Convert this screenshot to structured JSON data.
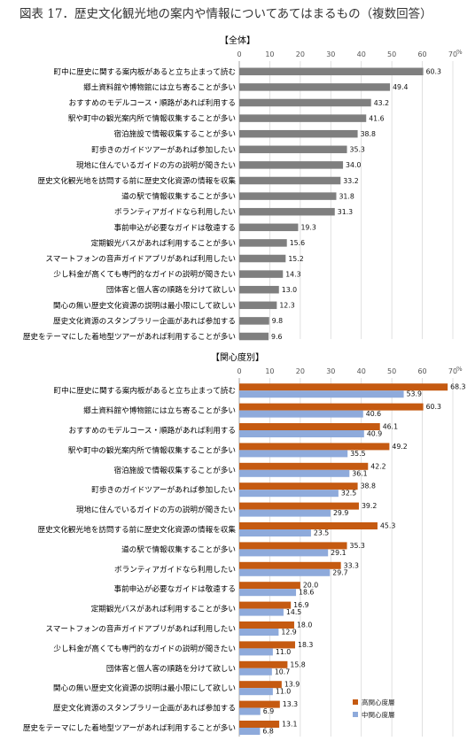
{
  "figure": {
    "title": "図表 17．歴史文化観光地の案内や情報についてあてはまるもの（複数回答）"
  },
  "chart_data": [
    {
      "type": "bar",
      "orientation": "horizontal",
      "title": "【全体】",
      "unit": "%",
      "xlim": [
        0,
        70
      ],
      "xticks": [
        0,
        10,
        20,
        30,
        40,
        50,
        60,
        70
      ],
      "grid": true,
      "categories": [
        "町中に歴史に関する案内板があると立ち止まって読む",
        "郷土資料館や博物館には立ち寄ることが多い",
        "おすすめのモデルコース・順路があれば利用する",
        "駅や町中の観光案内所で情報収集することが多い",
        "宿泊施設で情報収集することが多い",
        "町歩きのガイドツアーがあれば参加したい",
        "現地に住んでいるガイドの方の説明が聞きたい",
        "歴史文化観光地を訪問する前に歴史文化資源の情報を収集",
        "道の駅で情報収集することが多い",
        "ボランティアガイドなら利用したい",
        "事前申込が必要なガイドは敬遠する",
        "定期観光バスがあれば利用することが多い",
        "スマートフォンの音声ガイドアプリがあれば利用したい",
        "少し料金が高くても専門的なガイドの説明が聞きたい",
        "団体客と個人客の順路を分けて欲しい",
        "関心の無い歴史文化資源の説明は最小限にして欲しい",
        "歴史文化資源のスタンプラリー企画があれば参加する",
        "歴史をテーマにした着地型ツアーがあれば利用することが多い"
      ],
      "series": [
        {
          "color": "#7f7f7f",
          "values": [
            60.3,
            49.4,
            43.2,
            41.6,
            38.8,
            35.3,
            34.0,
            33.2,
            31.8,
            31.3,
            19.3,
            15.6,
            15.2,
            14.3,
            13.0,
            12.3,
            9.8,
            9.6
          ],
          "labels": [
            "60.3",
            "49.4",
            "43.2",
            "41.6",
            "38.8",
            "35.3",
            "34.0",
            "33.2",
            "31.8",
            "31.3",
            "19.3",
            "15.6",
            "15.2",
            "14.3",
            "13.0",
            "12.3",
            "9.8",
            "9.6"
          ]
        }
      ]
    },
    {
      "type": "bar",
      "orientation": "horizontal",
      "title": "【関心度別】",
      "unit": "%",
      "xlim": [
        0,
        70
      ],
      "xticks": [
        0,
        10,
        20,
        30,
        40,
        50,
        60,
        70
      ],
      "grid": true,
      "legend_position": "bottom-right",
      "categories": [
        "町中に歴史に関する案内板があると立ち止まって読む",
        "郷土資料館や博物館には立ち寄ることが多い",
        "おすすめのモデルコース・順路があれば利用する",
        "駅や町中の観光案内所で情報収集することが多い",
        "宿泊施設で情報収集することが多い",
        "町歩きのガイドツアーがあれば参加したい",
        "現地に住んでいるガイドの方の説明が聞きたい",
        "歴史文化観光地を訪問する前に歴史文化資源の情報を収集",
        "道の駅で情報収集することが多い",
        "ボランティアガイドなら利用したい",
        "事前申込が必要なガイドは敬遠する",
        "定期観光バスがあれば利用することが多い",
        "スマートフォンの音声ガイドアプリがあれば利用したい",
        "少し料金が高くても専門的なガイドの説明が聞きたい",
        "団体客と個人客の順路を分けて欲しい",
        "関心の無い歴史文化資源の説明は最小限にして欲しい",
        "歴史文化資源のスタンプラリー企画があれば参加する",
        "歴史をテーマにした着地型ツアーがあれば利用することが多い"
      ],
      "series": [
        {
          "name": "高関心度層",
          "color": "#c55a11",
          "values": [
            68.3,
            60.3,
            46.1,
            49.2,
            42.2,
            38.8,
            39.2,
            45.3,
            35.3,
            33.3,
            20.0,
            16.9,
            18.0,
            18.3,
            15.8,
            13.9,
            13.3,
            13.1
          ],
          "labels": [
            "68.3",
            "60.3",
            "46.1",
            "49.2",
            "42.2",
            "38.8",
            "39.2",
            "45.3",
            "35.3",
            "33.3",
            "20.0",
            "16.9",
            "18.0",
            "18.3",
            "15.8",
            "13.9",
            "13.3",
            "13.1"
          ]
        },
        {
          "name": "中関心度層",
          "color": "#8eaadb",
          "values": [
            53.9,
            40.6,
            40.9,
            35.5,
            36.1,
            32.5,
            29.9,
            23.5,
            29.1,
            29.7,
            18.6,
            14.5,
            12.9,
            11.0,
            10.7,
            11.0,
            6.9,
            6.8
          ],
          "labels": [
            "53.9",
            "40.6",
            "40.9",
            "35.5",
            "36.1",
            "32.5",
            "29.9",
            "23.5",
            "29.1",
            "29.7",
            "18.6",
            "14.5",
            "12.9",
            "11.0",
            "10.7",
            "11.0",
            "6.9",
            "6.8"
          ]
        }
      ]
    }
  ]
}
